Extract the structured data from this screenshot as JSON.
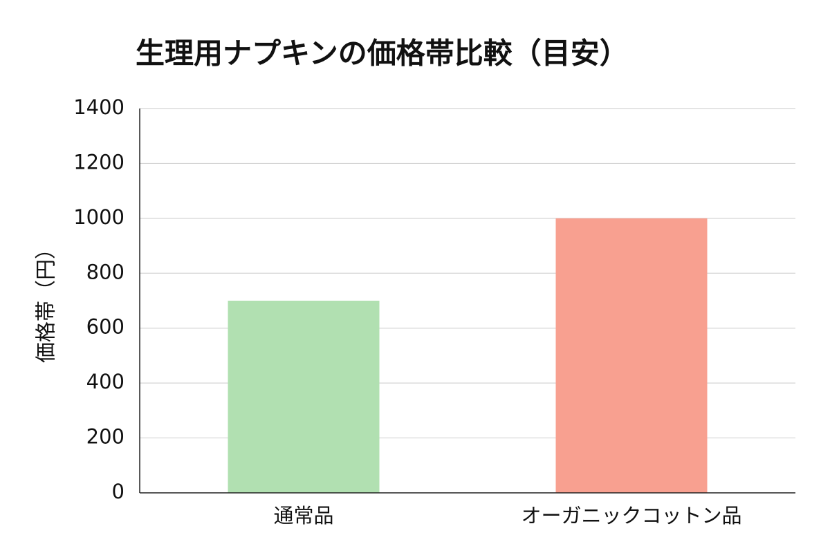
{
  "chart_data": {
    "type": "bar",
    "title": "生理用ナプキンの価格帯比較（目安）",
    "y_label": "価格帯（円）",
    "categories": [
      "通常品",
      "オーガニックコットン品"
    ],
    "values": [
      700,
      1000
    ],
    "colors": [
      "#b1e0b1",
      "#f8a090"
    ],
    "ylim": [
      0,
      1400
    ],
    "yticks": [
      0,
      200,
      400,
      600,
      800,
      1000,
      1200,
      1400
    ],
    "grid": true
  }
}
